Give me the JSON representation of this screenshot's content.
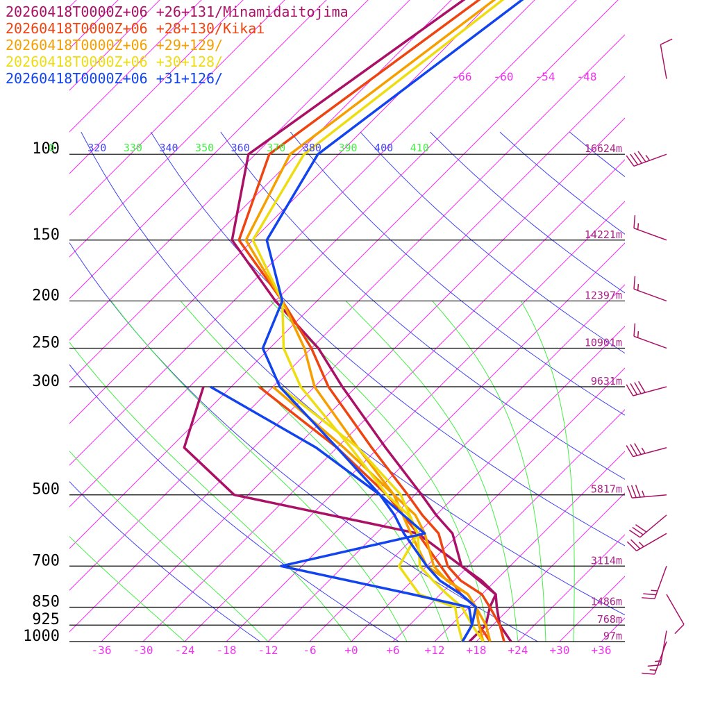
{
  "chart_data": {
    "type": "line",
    "title": "",
    "xlabel": "",
    "ylabel": "",
    "colors": {
      "isotherm": "#ee33ee",
      "theta_dry": "#4444ee",
      "theta_moist": "#44ee44",
      "pressure_line": "#000000",
      "height_label": "#aa2288",
      "wind_barb": "#aa1166"
    },
    "legend": [
      {
        "text": "20260418T0000Z+06 +26+131/Minamidaitojima",
        "color": "#aa1166"
      },
      {
        "text": "20260418T0000Z+06 +28+130/Kikai",
        "color": "#ee4411"
      },
      {
        "text": "20260418T0000Z+06 +29+129/",
        "color": "#f5a000"
      },
      {
        "text": "20260418T0000Z+06 +30+128/",
        "color": "#eedd11"
      },
      {
        "text": "20260418T0000Z+06 +31+126/",
        "color": "#1144ee"
      }
    ],
    "pressure_levels": [
      {
        "label": "100",
        "p": 100,
        "height": "16624m"
      },
      {
        "label": "150",
        "p": 150,
        "height": "14221m"
      },
      {
        "label": "200",
        "p": 200,
        "height": "12397m"
      },
      {
        "label": "250",
        "p": 250,
        "height": "10901m"
      },
      {
        "label": "300",
        "p": 300,
        "height": "9631m"
      },
      {
        "label": "500",
        "p": 500,
        "height": "5817m"
      },
      {
        "label": "700",
        "p": 700,
        "height": "3114m"
      },
      {
        "label": "850",
        "p": 850,
        "height": "1486m"
      },
      {
        "label": "925",
        "p": 925,
        "height": "768m"
      },
      {
        "label": "1000",
        "p": 1000,
        "height": "97m"
      }
    ],
    "x_ticks": [
      "-36",
      "-30",
      "-24",
      "-18",
      "-12",
      "-6",
      "+0",
      "+6",
      "+12",
      "+18",
      "+24",
      "+30",
      "+36"
    ],
    "upper_temp_labels": [
      "-66",
      "-60",
      "-54",
      "-48"
    ],
    "theta_labels": [
      {
        "text": "0",
        "kind": "moist"
      },
      {
        "text": "320",
        "kind": "dry"
      },
      {
        "text": "330",
        "kind": "moist"
      },
      {
        "text": "340",
        "kind": "dry"
      },
      {
        "text": "350",
        "kind": "moist"
      },
      {
        "text": "360",
        "kind": "dry"
      },
      {
        "text": "370",
        "kind": "moist"
      },
      {
        "text": "380",
        "kind": "dry"
      },
      {
        "text": "390",
        "kind": "moist"
      },
      {
        "text": "400",
        "kind": "dry"
      },
      {
        "text": "410",
        "kind": "moist"
      }
    ],
    "series": [
      {
        "name": "20260418T0000Z+06 +26+131/Minamidaitojima",
        "color": "#aa1166",
        "temperature": [
          [
            40,
            -74
          ],
          [
            100,
            -85
          ],
          [
            150,
            -75
          ],
          [
            200,
            -60
          ],
          [
            250,
            -47
          ],
          [
            300,
            -38
          ],
          [
            400,
            -23
          ],
          [
            500,
            -11
          ],
          [
            550,
            -6
          ],
          [
            600,
            -1
          ],
          [
            700,
            5
          ],
          [
            750,
            10
          ],
          [
            800,
            14
          ],
          [
            850,
            16
          ],
          [
            925,
            19
          ],
          [
            1000,
            23
          ]
        ],
        "dewpoint": [
          [
            300,
            -58
          ],
          [
            400,
            -52
          ],
          [
            500,
            -38
          ],
          [
            600,
            -6
          ],
          [
            700,
            5
          ],
          [
            800,
            14
          ],
          [
            850,
            15
          ],
          [
            925,
            17
          ],
          [
            1000,
            17
          ]
        ]
      },
      {
        "name": "20260418T0000Z+06 +28+130/Kikai",
        "color": "#ee4411",
        "temperature": [
          [
            40,
            -72
          ],
          [
            100,
            -82
          ],
          [
            150,
            -74
          ],
          [
            200,
            -59
          ],
          [
            250,
            -48
          ],
          [
            300,
            -40
          ],
          [
            400,
            -25
          ],
          [
            500,
            -13
          ],
          [
            550,
            -8
          ],
          [
            600,
            -3
          ],
          [
            700,
            3
          ],
          [
            750,
            7
          ],
          [
            800,
            12
          ],
          [
            850,
            15
          ],
          [
            925,
            19
          ],
          [
            1000,
            22
          ]
        ],
        "dewpoint": [
          [
            300,
            -50
          ],
          [
            400,
            -30
          ],
          [
            500,
            -16
          ],
          [
            600,
            -6
          ],
          [
            700,
            2
          ],
          [
            800,
            9
          ],
          [
            850,
            13
          ],
          [
            925,
            16
          ],
          [
            1000,
            20
          ]
        ]
      },
      {
        "name": "20260418T0000Z+06 +29+129/",
        "color": "#f5a000",
        "temperature": [
          [
            40,
            -70
          ],
          [
            100,
            -79
          ],
          [
            150,
            -73
          ],
          [
            200,
            -59
          ],
          [
            250,
            -49
          ],
          [
            300,
            -42
          ],
          [
            400,
            -27
          ],
          [
            500,
            -15
          ],
          [
            550,
            -9
          ],
          [
            600,
            -5
          ],
          [
            700,
            1
          ],
          [
            750,
            5
          ],
          [
            800,
            10
          ],
          [
            850,
            13
          ],
          [
            925,
            17
          ],
          [
            1000,
            20
          ]
        ],
        "dewpoint": [
          [
            300,
            -48
          ],
          [
            400,
            -29
          ],
          [
            500,
            -15
          ],
          [
            600,
            -7
          ],
          [
            700,
            0
          ],
          [
            800,
            10
          ],
          [
            850,
            13
          ],
          [
            925,
            16
          ],
          [
            1000,
            19
          ]
        ]
      },
      {
        "name": "20260418T0000Z+06 +30+128/",
        "color": "#eedd11",
        "temperature": [
          [
            40,
            -69
          ],
          [
            100,
            -77
          ],
          [
            150,
            -72
          ],
          [
            200,
            -59
          ],
          [
            250,
            -52
          ],
          [
            300,
            -44
          ],
          [
            400,
            -28
          ],
          [
            500,
            -16
          ],
          [
            550,
            -10
          ],
          [
            600,
            -6
          ],
          [
            700,
            -1
          ],
          [
            750,
            3
          ],
          [
            800,
            7
          ],
          [
            850,
            11
          ],
          [
            925,
            15
          ],
          [
            1000,
            19
          ]
        ],
        "dewpoint": [
          [
            300,
            -47
          ],
          [
            400,
            -27
          ],
          [
            500,
            -14
          ],
          [
            600,
            -6
          ],
          [
            700,
            -4
          ],
          [
            800,
            3
          ],
          [
            850,
            10
          ],
          [
            925,
            13
          ],
          [
            1000,
            16
          ]
        ]
      },
      {
        "name": "20260418T0000Z+06 +31+126/",
        "color": "#1144ee",
        "temperature": [
          [
            40,
            -66
          ],
          [
            100,
            -75
          ],
          [
            150,
            -70
          ],
          [
            200,
            -59
          ],
          [
            250,
            -55
          ],
          [
            300,
            -47
          ],
          [
            400,
            -30
          ],
          [
            500,
            -17
          ],
          [
            550,
            -12
          ],
          [
            600,
            -8
          ],
          [
            700,
            0
          ],
          [
            750,
            4
          ],
          [
            800,
            9
          ],
          [
            850,
            13
          ],
          [
            925,
            15
          ],
          [
            1000,
            16
          ]
        ],
        "dewpoint": [
          [
            300,
            -57
          ],
          [
            400,
            -33
          ],
          [
            500,
            -17
          ],
          [
            600,
            -5
          ],
          [
            700,
            -21
          ],
          [
            800,
            2
          ],
          [
            850,
            12
          ],
          [
            925,
            15
          ],
          [
            1000,
            16
          ]
        ]
      }
    ],
    "wind_barbs": [
      {
        "p": 40,
        "dir": 300,
        "kt": 10
      },
      {
        "p": 70,
        "dir": 350,
        "kt": 10
      },
      {
        "p": 100,
        "dir": 250,
        "kt": 45
      },
      {
        "p": 150,
        "dir": 290,
        "kt": 15
      },
      {
        "p": 200,
        "dir": 290,
        "kt": 15
      },
      {
        "p": 250,
        "dir": 290,
        "kt": 15
      },
      {
        "p": 300,
        "dir": 255,
        "kt": 40
      },
      {
        "p": 400,
        "dir": 255,
        "kt": 35
      },
      {
        "p": 500,
        "dir": 265,
        "kt": 35
      },
      {
        "p": 550,
        "dir": 230,
        "kt": 30
      },
      {
        "p": 600,
        "dir": 240,
        "kt": 25
      },
      {
        "p": 700,
        "dir": 200,
        "kt": 25
      },
      {
        "p": 800,
        "dir": 150,
        "kt": 10
      },
      {
        "p": 950,
        "dir": 190,
        "kt": 15
      },
      {
        "p": 1000,
        "dir": 200,
        "kt": 15
      }
    ]
  }
}
